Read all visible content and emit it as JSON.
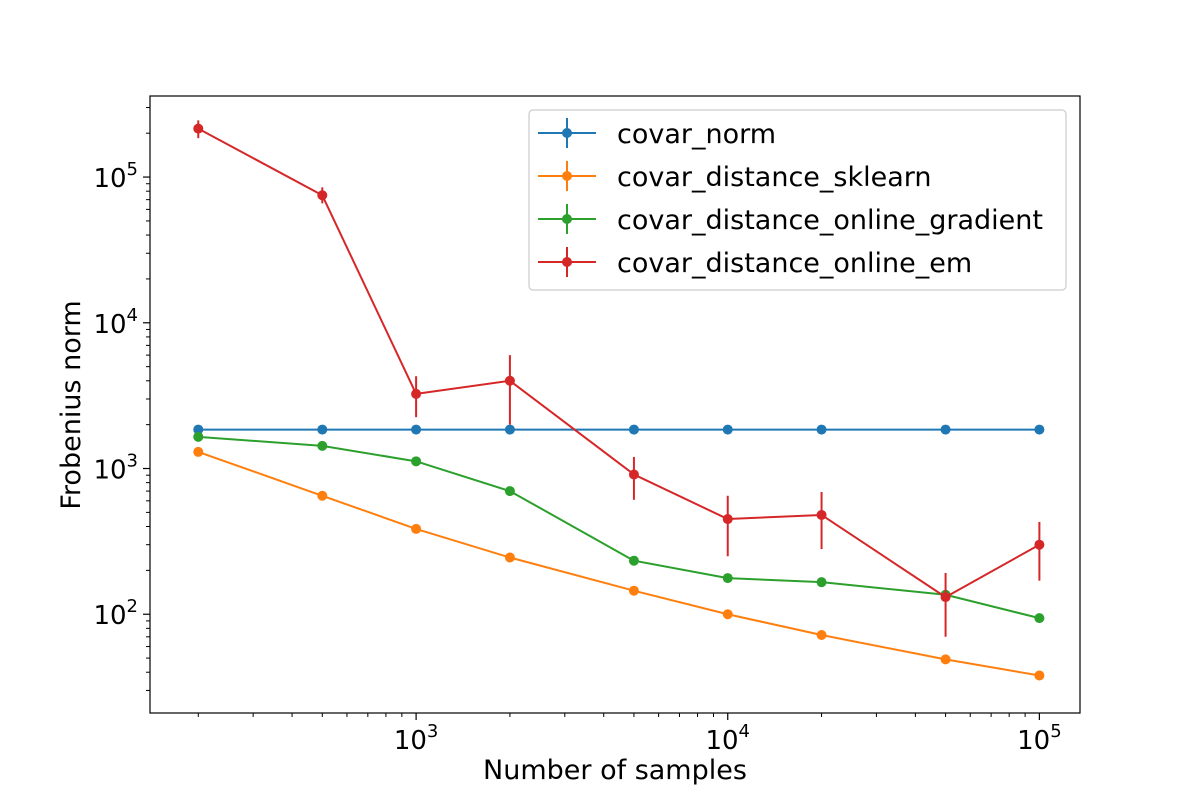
{
  "chart_data": {
    "type": "line",
    "title": "",
    "xlabel": "Number of samples",
    "ylabel": "Frobenius norm",
    "xscale": "log",
    "yscale": "log",
    "xlim": [
      140,
      135000
    ],
    "ylim": [
      21,
      360000
    ],
    "grid": false,
    "legend_position": "upper right",
    "x": [
      200,
      500,
      1000,
      2000,
      5000,
      10000,
      20000,
      50000,
      100000
    ],
    "x_ticks": [
      {
        "value": 1000,
        "base": "10",
        "exp": "3"
      },
      {
        "value": 10000,
        "base": "10",
        "exp": "4"
      },
      {
        "value": 100000,
        "base": "10",
        "exp": "5"
      }
    ],
    "y_ticks": [
      {
        "value": 100,
        "base": "10",
        "exp": "2"
      },
      {
        "value": 1000,
        "base": "10",
        "exp": "3"
      },
      {
        "value": 10000,
        "base": "10",
        "exp": "4"
      },
      {
        "value": 100000,
        "base": "10",
        "exp": "5"
      }
    ],
    "series": [
      {
        "name": "covar_norm",
        "color": "#1f77b4",
        "values": [
          1850,
          1850,
          1850,
          1850,
          1850,
          1850,
          1850,
          1850,
          1850
        ],
        "err_low": [
          1850,
          1850,
          1850,
          1850,
          1850,
          1850,
          1850,
          1850,
          1850
        ],
        "err_high": [
          1850,
          1850,
          1850,
          1850,
          1850,
          1850,
          1850,
          1850,
          1850
        ]
      },
      {
        "name": "covar_distance_sklearn",
        "color": "#ff7f0e",
        "values": [
          1300,
          650,
          385,
          245,
          145,
          100,
          72,
          49,
          38
        ],
        "err_low": [
          1300,
          650,
          385,
          245,
          145,
          100,
          72,
          49,
          38
        ],
        "err_high": [
          1300,
          650,
          385,
          245,
          145,
          100,
          72,
          49,
          38
        ]
      },
      {
        "name": "covar_distance_online_gradient",
        "color": "#2ca02c",
        "values": [
          1650,
          1430,
          1120,
          700,
          233,
          177,
          166,
          136,
          94
        ],
        "err_low": [
          1650,
          1430,
          1120,
          700,
          233,
          177,
          166,
          136,
          94
        ],
        "err_high": [
          1650,
          1430,
          1120,
          700,
          233,
          177,
          166,
          136,
          94
        ]
      },
      {
        "name": "covar_distance_online_em",
        "color": "#d62728",
        "values": [
          215000,
          75000,
          3250,
          4000,
          910,
          450,
          480,
          131,
          300
        ],
        "err_low": [
          185000,
          66000,
          2250,
          2000,
          610,
          250,
          280,
          70,
          170
        ],
        "err_high": [
          245000,
          85000,
          4300,
          6000,
          1200,
          650,
          690,
          192,
          430
        ]
      }
    ]
  }
}
